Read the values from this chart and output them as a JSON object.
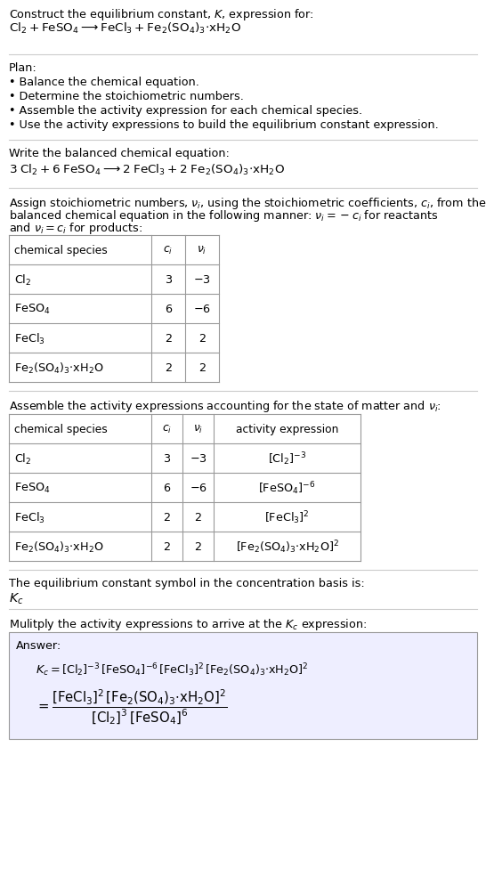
{
  "title_line1": "Construct the equilibrium constant, $K$, expression for:",
  "title_line2": "$\\mathrm{Cl_2 + FeSO_4 \\longrightarrow FeCl_3 + Fe_2(SO_4)_3{\\cdot}xH_2O}$",
  "plan_header": "Plan:",
  "plan_items": [
    "• Balance the chemical equation.",
    "• Determine the stoichiometric numbers.",
    "• Assemble the activity expression for each chemical species.",
    "• Use the activity expressions to build the equilibrium constant expression."
  ],
  "balanced_header": "Write the balanced chemical equation:",
  "balanced_eq": "$3\\;\\mathrm{Cl_2 + 6\\;FeSO_4 \\longrightarrow 2\\;FeCl_3 + 2\\;Fe_2(SO_4)_3{\\cdot}xH_2O}$",
  "stoich_header_l1": "Assign stoichiometric numbers, $\\nu_i$, using the stoichiometric coefficients, $c_i$, from the",
  "stoich_header_l2": "balanced chemical equation in the following manner: $\\nu_i = -c_i$ for reactants",
  "stoich_header_l3": "and $\\nu_i = c_i$ for products:",
  "table1_headers": [
    "chemical species",
    "$c_i$",
    "$\\nu_i$"
  ],
  "table1_rows": [
    [
      "$\\mathrm{Cl_2}$",
      "3",
      "$-3$"
    ],
    [
      "$\\mathrm{FeSO_4}$",
      "6",
      "$-6$"
    ],
    [
      "$\\mathrm{FeCl_3}$",
      "2",
      "2"
    ],
    [
      "$\\mathrm{Fe_2(SO_4)_3{\\cdot}xH_2O}$",
      "2",
      "2"
    ]
  ],
  "activity_header": "Assemble the activity expressions accounting for the state of matter and $\\nu_i$:",
  "table2_headers": [
    "chemical species",
    "$c_i$",
    "$\\nu_i$",
    "activity expression"
  ],
  "table2_rows": [
    [
      "$\\mathrm{Cl_2}$",
      "3",
      "$-3$",
      "$[\\mathrm{Cl_2}]^{-3}$"
    ],
    [
      "$\\mathrm{FeSO_4}$",
      "6",
      "$-6$",
      "$[\\mathrm{FeSO_4}]^{-6}$"
    ],
    [
      "$\\mathrm{FeCl_3}$",
      "2",
      "2",
      "$[\\mathrm{FeCl_3}]^{2}$"
    ],
    [
      "$\\mathrm{Fe_2(SO_4)_3{\\cdot}xH_2O}$",
      "2",
      "2",
      "$[\\mathrm{Fe_2(SO_4)_3{\\cdot}xH_2O}]^{2}$"
    ]
  ],
  "kc_header": "The equilibrium constant symbol in the concentration basis is:",
  "kc_symbol": "$K_c$",
  "multiply_header": "Mulitply the activity expressions to arrive at the $K_c$ expression:",
  "answer_label": "Answer:",
  "answer_line1": "$K_c = [\\mathrm{Cl_2}]^{-3}\\,[\\mathrm{FeSO_4}]^{-6}\\,[\\mathrm{FeCl_3}]^{2}\\,[\\mathrm{Fe_2(SO_4)_3{\\cdot}xH_2O}]^{2}$",
  "answer_line2_eq": "$= \\dfrac{[\\mathrm{FeCl_3}]^{2}\\,[\\mathrm{Fe_2(SO_4)_3{\\cdot}xH_2O}]^{2}}{[\\mathrm{Cl_2}]^{3}\\,[\\mathrm{FeSO_4}]^{6}}$",
  "bg_color": "#ffffff",
  "text_color": "#000000",
  "table_border_color": "#999999",
  "answer_box_color": "#eeeeff",
  "separator_color": "#cccccc",
  "font_size": 9.2,
  "small_font_size": 8.8
}
